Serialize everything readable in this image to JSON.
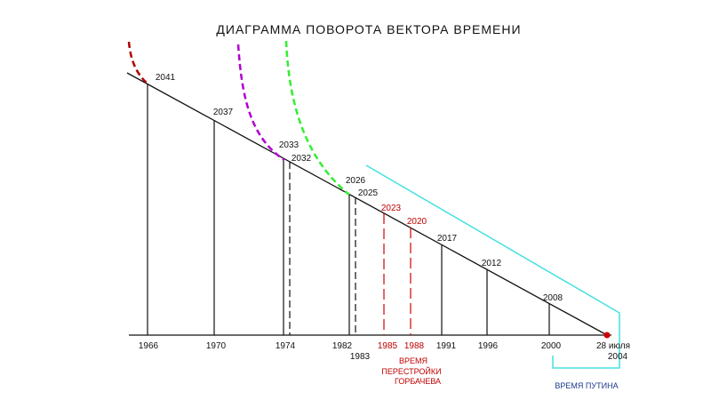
{
  "title": "ДИАГРАММА ПОВОРОТА ВЕКТОРА ВРЕМЕНИ",
  "top_labels": [
    "2041",
    "2037",
    "2033",
    "2032",
    "2026",
    "2025",
    "2023",
    "2020",
    "2017",
    "2012",
    "2008"
  ],
  "bottom_labels": [
    "1966",
    "1970",
    "1974",
    "1982",
    "1983",
    "1985",
    "1988",
    "1991",
    "1996",
    "2000"
  ],
  "end_label": [
    "28 июля",
    "2004"
  ],
  "perestroika_note": [
    "ВРЕМЯ",
    "ПЕРЕСТРОЙКИ",
    "ГОРБАЧЕВА"
  ],
  "putin_note": "ВРЕМЯ ПУТИНА"
}
